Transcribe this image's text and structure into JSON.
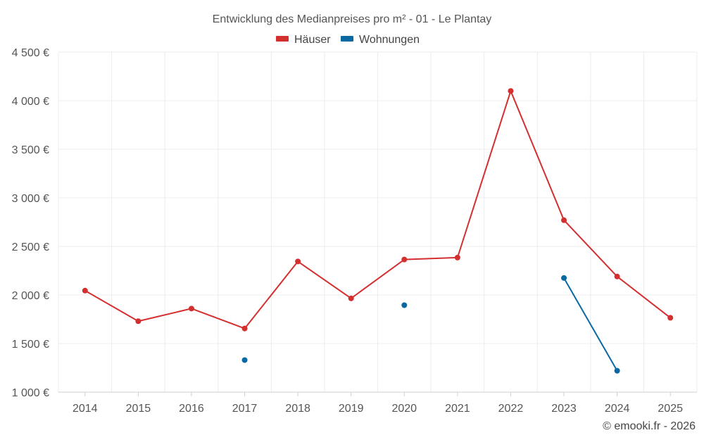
{
  "chart_data": {
    "type": "line",
    "title": "Entwicklung des Medianpreises pro m² - 01 - Le Plantay",
    "categories": [
      "2014",
      "2015",
      "2016",
      "2017",
      "2018",
      "2019",
      "2020",
      "2021",
      "2022",
      "2023",
      "2024",
      "2025"
    ],
    "ylim": [
      1000,
      4500
    ],
    "yticks": [
      1000,
      1500,
      2000,
      2500,
      3000,
      3500,
      4000,
      4500
    ],
    "ytick_labels": [
      "1 000 €",
      "1 500 €",
      "2 000 €",
      "2 500 €",
      "3 000 €",
      "3 500 €",
      "4 000 €",
      "4 500 €"
    ],
    "grid": true,
    "legend_position": "top-center",
    "series": [
      {
        "name": "Häuser",
        "color": "#d32f2f",
        "values": [
          2045,
          1730,
          1860,
          1655,
          2345,
          1965,
          2365,
          2385,
          4100,
          2770,
          2190,
          1765
        ]
      },
      {
        "name": "Wohnungen",
        "color": "#0a68a3",
        "values": [
          null,
          null,
          null,
          1330,
          null,
          null,
          1895,
          null,
          null,
          2175,
          1220,
          null
        ]
      }
    ],
    "credit": "© emooki.fr - 2026"
  }
}
